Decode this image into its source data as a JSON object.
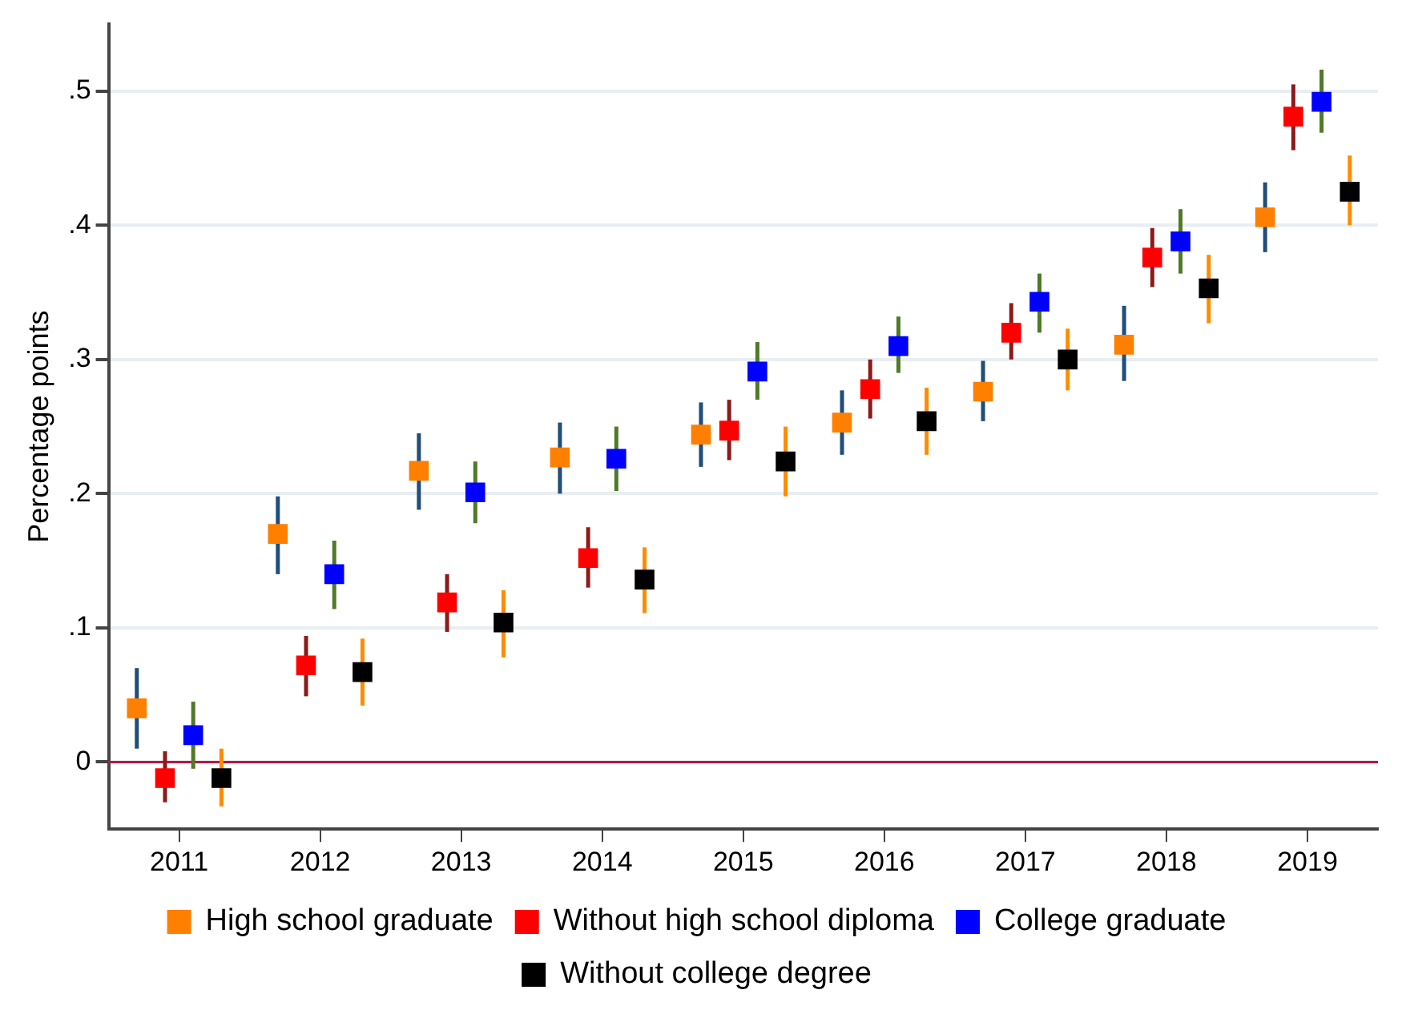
{
  "chart_data": {
    "type": "scatter",
    "ylabel": "Percentage points",
    "marker": "square",
    "grid": "y",
    "legend": "bottom",
    "xlim": [
      2010.5,
      2019.5
    ],
    "xticks": [
      2011,
      2012,
      2013,
      2014,
      2015,
      2016,
      2017,
      2018,
      2019
    ],
    "ylim": [
      -0.05,
      0.55
    ],
    "yticks": [
      {
        "value": 0,
        "label": "0"
      },
      {
        "value": 0.1,
        "label": ".1"
      },
      {
        "value": 0.2,
        "label": ".2"
      },
      {
        "value": 0.3,
        "label": ".3"
      },
      {
        "value": 0.4,
        "label": ".4"
      },
      {
        "value": 0.5,
        "label": ".5"
      }
    ],
    "ref_lines": [
      {
        "axis": "y",
        "value": 0,
        "color": "#c0143c"
      }
    ],
    "series": [
      {
        "name": "High school graduate",
        "color": "#ff7f00",
        "x": [
          2010.7,
          2011.7,
          2012.7,
          2013.7,
          2014.7,
          2015.7,
          2016.7,
          2017.7,
          2018.7
        ],
        "values": [
          0.04,
          0.17,
          0.217,
          0.227,
          0.244,
          0.253,
          0.276,
          0.311,
          0.406
        ],
        "errors": [
          [
            0.01,
            0.07
          ],
          [
            0.14,
            0.198
          ],
          [
            0.188,
            0.245
          ],
          [
            0.2,
            0.253
          ],
          [
            0.22,
            0.268
          ],
          [
            0.229,
            0.277
          ],
          [
            0.254,
            0.299
          ],
          [
            0.284,
            0.34
          ],
          [
            0.38,
            0.432
          ]
        ]
      },
      {
        "name": "Without high school diploma",
        "color": "#ff0000",
        "x": [
          2010.9,
          2011.9,
          2012.9,
          2013.9,
          2014.9,
          2015.9,
          2016.9,
          2017.9,
          2018.9
        ],
        "values": [
          -0.012,
          0.072,
          0.119,
          0.152,
          0.247,
          0.278,
          0.32,
          0.376,
          0.481
        ],
        "errors": [
          [
            -0.03,
            0.008
          ],
          [
            0.049,
            0.094
          ],
          [
            0.097,
            0.14
          ],
          [
            0.13,
            0.175
          ],
          [
            0.225,
            0.27
          ],
          [
            0.256,
            0.3
          ],
          [
            0.3,
            0.342
          ],
          [
            0.354,
            0.398
          ],
          [
            0.456,
            0.505
          ]
        ]
      },
      {
        "name": "College graduate",
        "color": "#0000ff",
        "x": [
          2011.1,
          2012.1,
          2013.1,
          2014.1,
          2015.1,
          2016.1,
          2017.1,
          2018.1,
          2019.1
        ],
        "values": [
          0.02,
          0.14,
          0.201,
          0.226,
          0.291,
          0.31,
          0.343,
          0.388,
          0.492
        ],
        "errors": [
          [
            -0.005,
            0.045
          ],
          [
            0.114,
            0.165
          ],
          [
            0.178,
            0.224
          ],
          [
            0.202,
            0.25
          ],
          [
            0.27,
            0.313
          ],
          [
            0.29,
            0.332
          ],
          [
            0.32,
            0.364
          ],
          [
            0.364,
            0.412
          ],
          [
            0.469,
            0.516
          ]
        ]
      },
      {
        "name": "Without college degree",
        "color": "#000000",
        "x": [
          2011.3,
          2012.3,
          2013.3,
          2014.3,
          2015.3,
          2016.3,
          2017.3,
          2018.3,
          2019.3
        ],
        "values": [
          -0.012,
          0.067,
          0.104,
          0.136,
          0.224,
          0.254,
          0.3,
          0.353,
          0.425
        ],
        "errors": [
          [
            -0.033,
            0.01
          ],
          [
            0.042,
            0.092
          ],
          [
            0.078,
            0.128
          ],
          [
            0.111,
            0.16
          ],
          [
            0.198,
            0.25
          ],
          [
            0.229,
            0.279
          ],
          [
            0.277,
            0.323
          ],
          [
            0.327,
            0.378
          ],
          [
            0.4,
            0.452
          ]
        ]
      }
    ]
  }
}
